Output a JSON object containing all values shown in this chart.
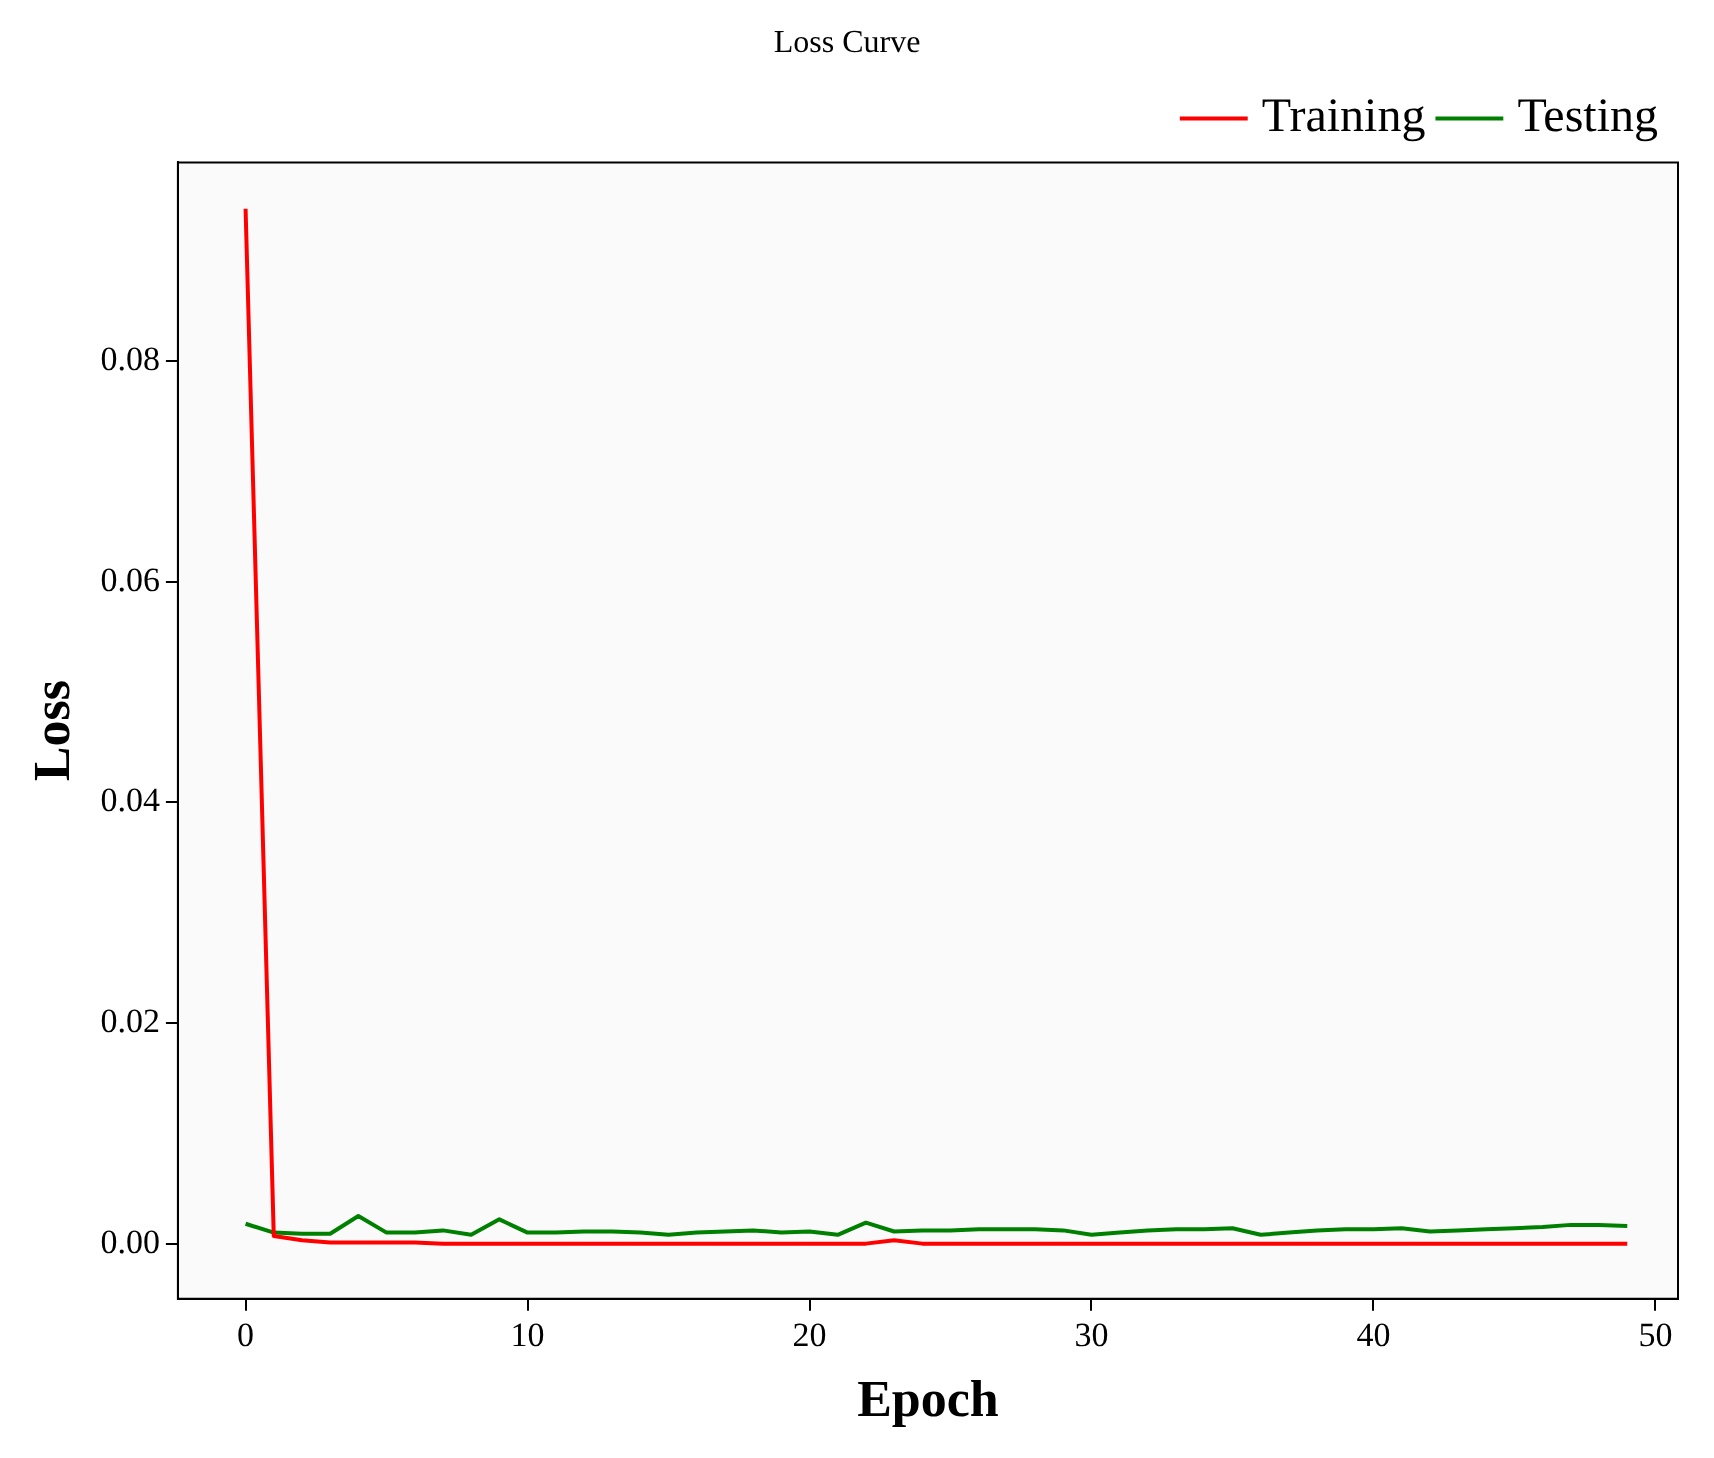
{
  "chart_data": {
    "type": "line",
    "title": "Loss Curve",
    "xlabel": "Epoch",
    "ylabel": "Loss",
    "x": [
      0,
      1,
      2,
      3,
      4,
      5,
      6,
      7,
      8,
      9,
      10,
      11,
      12,
      13,
      14,
      15,
      16,
      17,
      18,
      19,
      20,
      21,
      22,
      23,
      24,
      25,
      26,
      27,
      28,
      29,
      30,
      31,
      32,
      33,
      34,
      35,
      36,
      37,
      38,
      39,
      40,
      41,
      42,
      43,
      44,
      45,
      46,
      47,
      48,
      49
    ],
    "series": [
      {
        "name": "Training",
        "color": "#ff0000",
        "values": [
          0.0938,
          0.0007,
          0.0003,
          0.0001,
          0.0001,
          0.0001,
          0.0001,
          0.0,
          0.0,
          0.0,
          0.0,
          0.0,
          0.0,
          0.0,
          0.0,
          0.0,
          0.0,
          0.0,
          0.0,
          0.0,
          0.0,
          0.0,
          0.0,
          0.0003,
          0.0,
          0.0,
          0.0,
          0.0,
          0.0,
          0.0,
          0.0,
          0.0,
          0.0,
          0.0,
          0.0,
          0.0,
          0.0,
          0.0,
          0.0,
          0.0,
          0.0,
          0.0,
          0.0,
          0.0,
          0.0,
          0.0,
          0.0,
          0.0,
          0.0,
          0.0
        ]
      },
      {
        "name": "Testing",
        "color": "#008000",
        "values": [
          0.0018,
          0.001,
          0.0009,
          0.0009,
          0.0025,
          0.001,
          0.001,
          0.0012,
          0.0008,
          0.0022,
          0.001,
          0.001,
          0.0011,
          0.0011,
          0.001,
          0.0008,
          0.001,
          0.0011,
          0.0012,
          0.001,
          0.0011,
          0.0008,
          0.0019,
          0.0011,
          0.0012,
          0.0012,
          0.0013,
          0.0013,
          0.0013,
          0.0012,
          0.0008,
          0.001,
          0.0012,
          0.0013,
          0.0013,
          0.0014,
          0.0008,
          0.001,
          0.0012,
          0.0013,
          0.0013,
          0.0014,
          0.0011,
          0.0012,
          0.0013,
          0.0014,
          0.0015,
          0.0017,
          0.0017,
          0.0016
        ]
      }
    ],
    "xlim": [
      -2.4,
      50.8
    ],
    "xticks": [
      0,
      10,
      20,
      30,
      40,
      50
    ],
    "ylim": [
      -0.005,
      0.098
    ],
    "yticks": [
      {
        "value": 0,
        "label": "0.00"
      },
      {
        "value": 0.02,
        "label": "0.02"
      },
      {
        "value": 0.04,
        "label": "0.04"
      },
      {
        "value": 0.06,
        "label": "0.06"
      },
      {
        "value": 0.08,
        "label": "0.08"
      }
    ],
    "grid": false,
    "legend": "top right",
    "marker": "none",
    "line_style": "solid"
  }
}
